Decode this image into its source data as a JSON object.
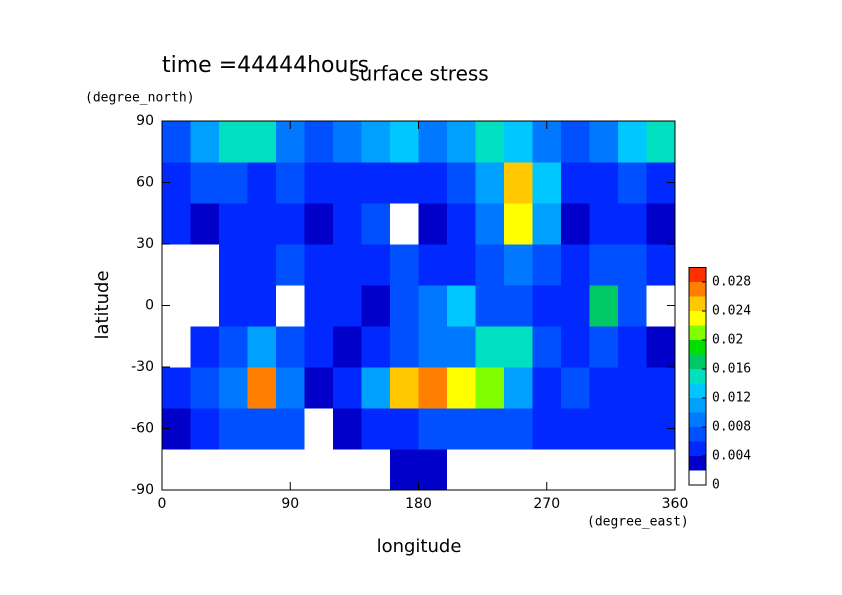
{
  "chart_data": {
    "type": "contour",
    "title": "surface stress",
    "subtitle": "time =44444hours",
    "x_label": "longitude",
    "x_units": "(degree_east)",
    "y_label": "latitude",
    "y_units": "(degree_north)",
    "x": [
      10,
      30,
      50,
      70,
      90,
      110,
      130,
      150,
      170,
      190,
      210,
      230,
      250,
      270,
      290,
      310,
      330,
      350
    ],
    "y": [
      -80,
      -60,
      -40,
      -20,
      0,
      20,
      40,
      60,
      80
    ],
    "z": [
      [
        0,
        0,
        0,
        0,
        0,
        0,
        0,
        0.001,
        0.002,
        0.002,
        0.001,
        0,
        0,
        0,
        0,
        0,
        0,
        0
      ],
      [
        0.002,
        0.004,
        0.006,
        0.006,
        0.006,
        0.001,
        0.002,
        0.004,
        0.004,
        0.006,
        0.006,
        0.006,
        0.006,
        0.004,
        0.004,
        0.004,
        0.004,
        0.004
      ],
      [
        0.004,
        0.006,
        0.008,
        0.026,
        0.008,
        0.002,
        0.004,
        0.01,
        0.024,
        0.026,
        0.022,
        0.02,
        0.01,
        0.004,
        0.006,
        0.004,
        0.004,
        0.004
      ],
      [
        0.001,
        0.004,
        0.006,
        0.01,
        0.006,
        0.004,
        0.002,
        0.004,
        0.006,
        0.008,
        0.008,
        0.014,
        0.014,
        0.006,
        0.004,
        0.006,
        0.004,
        0.002
      ],
      [
        0.001,
        0.001,
        0.004,
        0.004,
        0.001,
        0.004,
        0.004,
        0.002,
        0.006,
        0.008,
        0.012,
        0.006,
        0.006,
        0.004,
        0.004,
        0.016,
        0.006,
        0.001
      ],
      [
        0.001,
        0.001,
        0.004,
        0.004,
        0.006,
        0.004,
        0.004,
        0.004,
        0.006,
        0.004,
        0.004,
        0.006,
        0.008,
        0.006,
        0.004,
        0.006,
        0.006,
        0.004
      ],
      [
        0.004,
        0.002,
        0.004,
        0.004,
        0.004,
        0.002,
        0.004,
        0.006,
        0.001,
        0.002,
        0.004,
        0.008,
        0.022,
        0.01,
        0.002,
        0.004,
        0.004,
        0.002
      ],
      [
        0.004,
        0.006,
        0.006,
        0.004,
        0.006,
        0.004,
        0.004,
        0.004,
        0.004,
        0.004,
        0.006,
        0.01,
        0.024,
        0.012,
        0.004,
        0.004,
        0.006,
        0.004
      ],
      [
        0.006,
        0.01,
        0.014,
        0.014,
        0.008,
        0.006,
        0.008,
        0.01,
        0.012,
        0.008,
        0.01,
        0.014,
        0.012,
        0.008,
        0.006,
        0.008,
        0.012,
        0.014
      ]
    ],
    "levels": [
      0,
      0.002,
      0.004,
      0.006,
      0.008,
      0.01,
      0.012,
      0.014,
      0.016,
      0.018,
      0.02,
      0.022,
      0.024,
      0.026,
      0.028,
      0.03
    ],
    "colors": [
      "#ffffff",
      "#0000c8",
      "#0028ff",
      "#0050ff",
      "#0078ff",
      "#00a0ff",
      "#00c8ff",
      "#00e0c0",
      "#00c864",
      "#00e000",
      "#80ff00",
      "#ffff00",
      "#ffc800",
      "#ff8000",
      "#ff3000"
    ],
    "xlim": [
      0,
      360
    ],
    "xticks": [
      0,
      90,
      180,
      270,
      360
    ],
    "ylim": [
      -90,
      90
    ],
    "yticks": [
      -90,
      -60,
      -30,
      0,
      30,
      60,
      90
    ],
    "colorbar_lim": [
      0,
      0.03
    ],
    "colorbar_ticks": [
      0,
      0.004,
      0.008,
      0.012,
      0.016,
      0.02,
      0.024,
      0.028
    ]
  }
}
